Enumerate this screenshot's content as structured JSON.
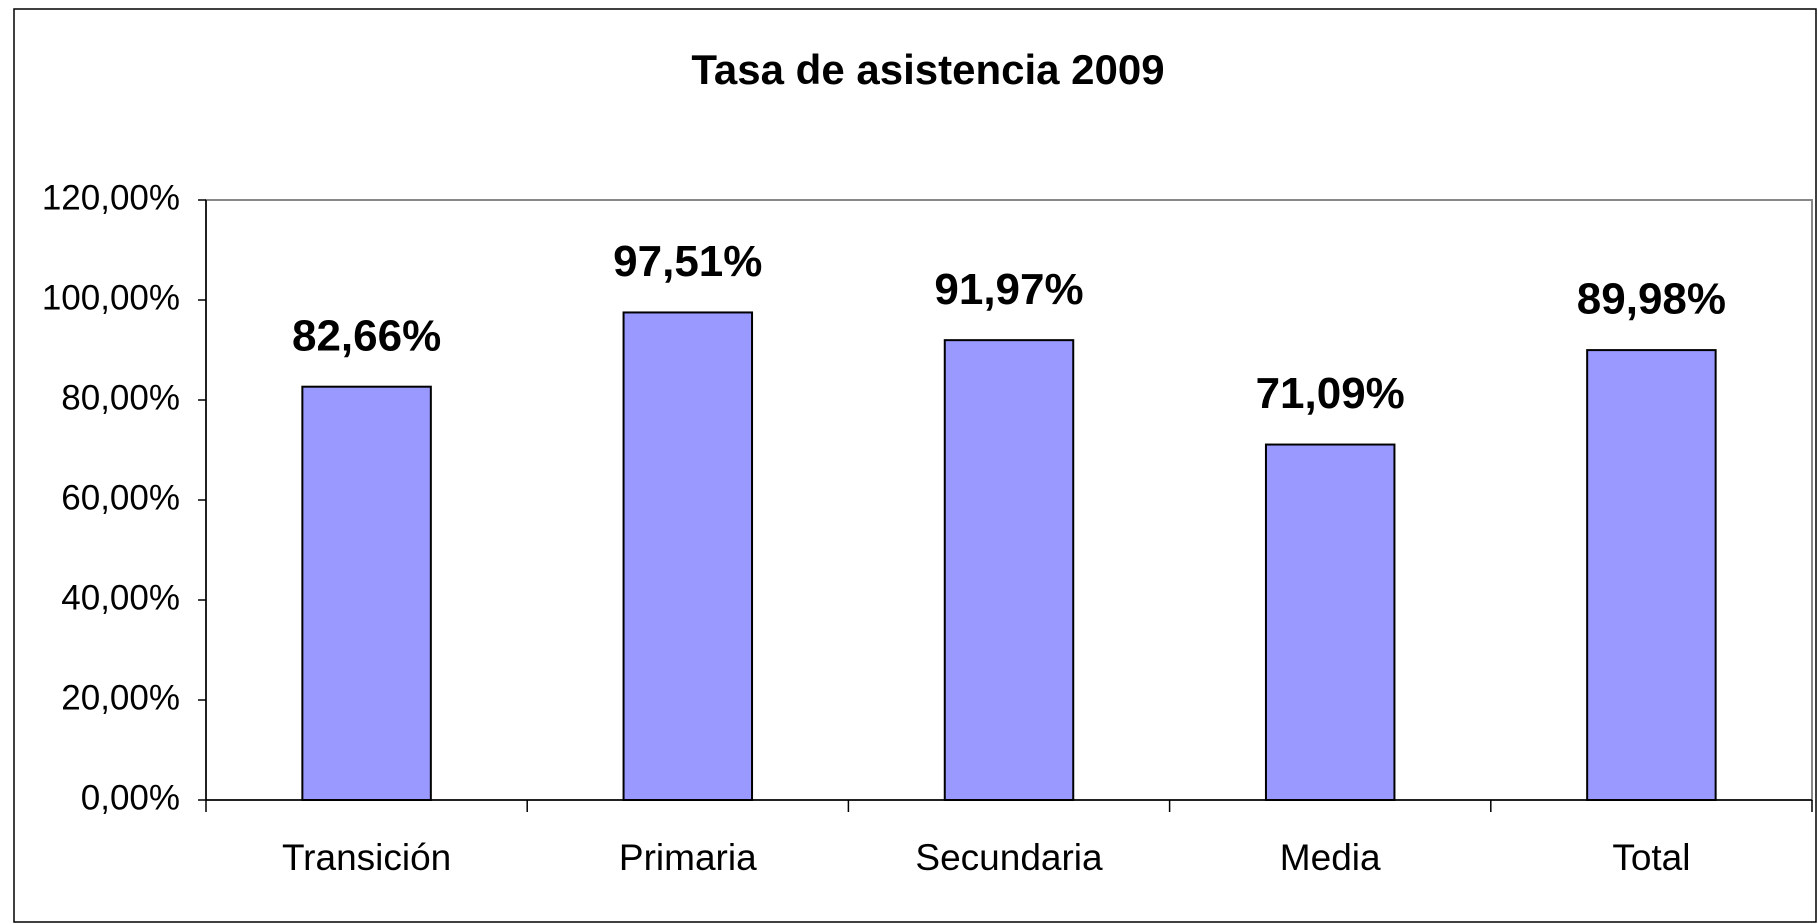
{
  "chart_data": {
    "type": "bar",
    "title": "Tasa de asistencia 2009",
    "categories": [
      "Transición",
      "Primaria",
      "Secundaria",
      "Media",
      "Total"
    ],
    "values": [
      82.66,
      97.51,
      91.97,
      71.09,
      89.98
    ],
    "value_labels": [
      "82,66%",
      "97,51%",
      "91,97%",
      "71,09%",
      "89,98%"
    ],
    "color": "#9999ff",
    "ylim": [
      0,
      120
    ],
    "yticks": [
      {
        "value": 0,
        "label": "0,00%"
      },
      {
        "value": 20,
        "label": "20,00%"
      },
      {
        "value": 40,
        "label": "40,00%"
      },
      {
        "value": 60,
        "label": "60,00%"
      },
      {
        "value": 80,
        "label": "80,00%"
      },
      {
        "value": 100,
        "label": "100,00%"
      },
      {
        "value": 120,
        "label": "120,00%"
      }
    ],
    "grid": false
  }
}
